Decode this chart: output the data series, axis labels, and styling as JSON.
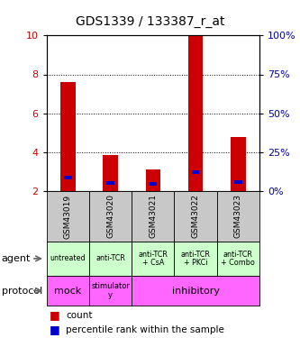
{
  "title": "GDS1339 / 133387_r_at",
  "samples": [
    "GSM43019",
    "GSM43020",
    "GSM43021",
    "GSM43022",
    "GSM43023"
  ],
  "count_values": [
    7.6,
    3.85,
    3.1,
    10.0,
    4.8
  ],
  "percentile_values": [
    2.7,
    2.4,
    2.35,
    2.95,
    2.45
  ],
  "bar_bottom": 2.0,
  "ylim_left": [
    2,
    10
  ],
  "ylim_right": [
    0,
    100
  ],
  "yticks_left": [
    2,
    4,
    6,
    8,
    10
  ],
  "yticks_right": [
    0,
    25,
    50,
    75,
    100
  ],
  "agent_labels": [
    "untreated",
    "anti-TCR",
    "anti-TCR\n+ CsA",
    "anti-TCR\n+ PKCi",
    "anti-TCR\n+ Combo"
  ],
  "agent_bg_color": "#ccffcc",
  "sample_bg_color": "#c8c8c8",
  "protocol_color": "#ff66ff",
  "count_color": "#cc0000",
  "percentile_color": "#0000cc",
  "left_axis_color": "#cc0000",
  "right_axis_color": "#0000aa",
  "bar_width": 0.35,
  "perc_bar_width": 0.18
}
